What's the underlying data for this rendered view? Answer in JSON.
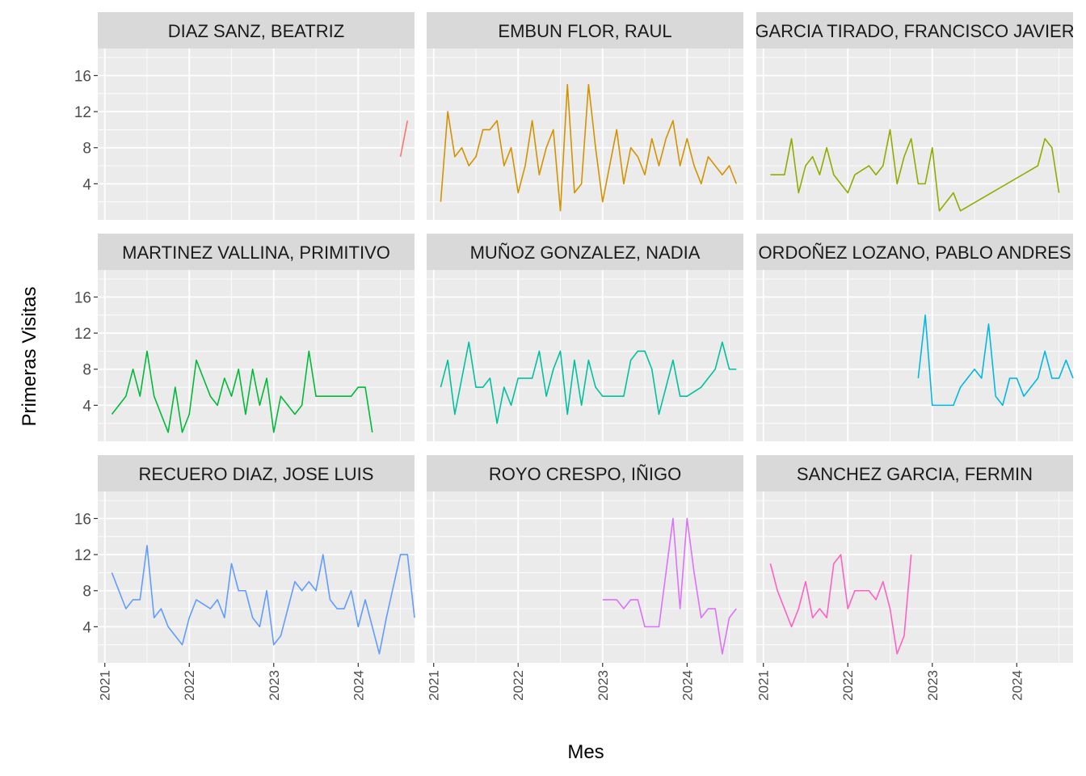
{
  "chart_data": {
    "type": "line",
    "xlabel": "Mes",
    "ylabel": "Primeras Visitas",
    "x_ticks": [
      "2021",
      "2022",
      "2023",
      "2024"
    ],
    "y_ticks": [
      "4",
      "8",
      "12",
      "16"
    ],
    "ylim": [
      0,
      19
    ],
    "xlim": [
      "2020-12",
      "2024-09"
    ],
    "facet_layout": "3x3",
    "grid": true,
    "legend": "none",
    "panels": [
      {
        "name": "DIAZ SANZ, BEATRIZ",
        "color": "#F8766D",
        "start": "2024-07",
        "values": [
          7,
          11
        ]
      },
      {
        "name": "EMBUN FLOR, RAUL",
        "color": "#D39200",
        "start": "2021-02",
        "values": [
          2,
          12,
          7,
          8,
          6,
          7,
          10,
          10,
          11,
          6,
          8,
          3,
          6,
          11,
          5,
          8,
          10,
          1,
          15,
          3,
          4,
          15,
          8,
          2,
          6,
          10,
          4,
          8,
          7,
          5,
          9,
          6,
          9,
          11,
          6,
          9,
          6,
          4,
          7,
          6,
          5,
          6,
          4
        ]
      },
      {
        "name": "GARCIA TIRADO, FRANCISCO JAVIER",
        "color": "#93AA00",
        "start": "2021-02",
        "values": [
          5,
          5,
          5,
          9,
          3,
          6,
          7,
          5,
          8,
          5,
          4,
          3,
          5,
          null,
          6,
          5,
          6,
          10,
          4,
          7,
          9,
          4,
          4,
          8,
          1,
          null,
          3,
          1,
          null,
          null,
          null,
          null,
          null,
          null,
          null,
          null,
          null,
          null,
          6,
          9,
          8,
          3
        ]
      },
      {
        "name": "MARTINEZ VALLINA, PRIMITIVO",
        "color": "#00BA38",
        "start": "2021-02",
        "values": [
          3,
          4,
          5,
          8,
          5,
          10,
          5,
          3,
          1,
          6,
          1,
          3,
          9,
          7,
          5,
          4,
          7,
          5,
          8,
          3,
          8,
          4,
          7,
          1,
          5,
          4,
          3,
          4,
          10,
          5,
          5,
          5,
          5,
          5,
          5,
          6,
          6,
          1
        ]
      },
      {
        "name": "MUÑOZ GONZALEZ, NADIA",
        "color": "#00C19F",
        "start": "2021-02",
        "values": [
          6,
          9,
          3,
          7,
          11,
          6,
          6,
          7,
          2,
          6,
          4,
          7,
          7,
          7,
          10,
          5,
          8,
          10,
          3,
          9,
          4,
          9,
          6,
          5,
          5,
          5,
          5,
          9,
          10,
          10,
          8,
          3,
          6,
          9,
          5,
          5,
          null,
          6,
          null,
          8,
          11,
          8,
          8
        ]
      },
      {
        "name": "ORDOÑEZ LOZANO, PABLO ANDRES",
        "color": "#00B9E3",
        "start": "2022-11",
        "values": [
          7,
          14,
          4,
          4,
          4,
          4,
          6,
          7,
          8,
          7,
          13,
          5,
          4,
          7,
          7,
          5,
          6,
          7,
          10,
          7,
          7,
          9,
          7
        ]
      },
      {
        "name": "RECUERO DIAZ, JOSE LUIS",
        "color": "#619CFF",
        "start": "2021-02",
        "values": [
          10,
          8,
          6,
          7,
          7,
          13,
          5,
          6,
          4,
          3,
          2,
          5,
          7,
          6.5,
          6,
          7,
          5,
          11,
          8,
          8,
          5,
          4,
          8,
          2,
          3,
          6,
          9,
          8,
          9,
          8,
          12,
          7,
          6,
          6,
          8,
          4,
          7,
          4,
          1,
          5,
          null,
          12,
          12,
          5
        ]
      },
      {
        "name": "ROYO CRESPO, IÑIGO",
        "color": "#DB72FB",
        "start": "2023-01",
        "values": [
          7,
          7,
          7,
          6,
          7,
          7,
          4,
          4,
          4,
          10,
          16,
          6,
          16,
          10,
          5,
          6,
          6,
          1,
          5,
          6
        ]
      },
      {
        "name": "SANCHEZ GARCIA, FERMIN",
        "color": "#FF61C3",
        "start": "2021-02",
        "values": [
          11,
          8,
          6,
          4,
          6,
          9,
          5,
          6,
          5,
          11,
          12,
          6,
          8,
          8,
          8,
          7,
          9,
          6,
          1,
          3,
          12
        ]
      }
    ]
  }
}
